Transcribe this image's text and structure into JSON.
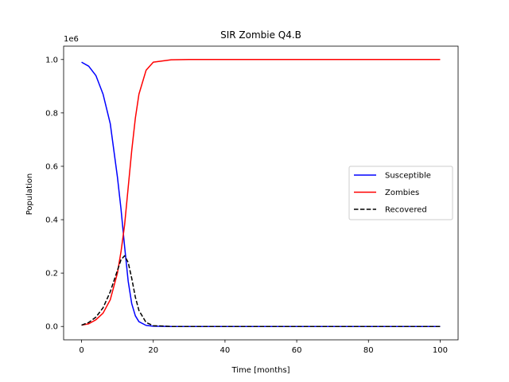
{
  "chart_data": {
    "type": "line",
    "title": "SIR Zombie Q4.B",
    "xlabel": "Time [months]",
    "ylabel": "Population",
    "y_offset_label": "1e6",
    "xlim": [
      -5,
      105
    ],
    "ylim": [
      -0.05,
      1.05
    ],
    "x_ticks": [
      0,
      20,
      40,
      60,
      80,
      100
    ],
    "x_tick_labels": [
      "0",
      "20",
      "40",
      "60",
      "80",
      "100"
    ],
    "y_ticks": [
      0.0,
      0.2,
      0.4,
      0.6,
      0.8,
      1.0
    ],
    "y_tick_labels": [
      "0.0",
      "0.2",
      "0.4",
      "0.6",
      "0.8",
      "1.0"
    ],
    "grid": false,
    "legend_placement": "center-right",
    "x": [
      0,
      2,
      4,
      6,
      8,
      10,
      11,
      12,
      13,
      14,
      15,
      16,
      18,
      20,
      25,
      30,
      40,
      50,
      60,
      70,
      80,
      90,
      100
    ],
    "series": [
      {
        "name": "Susceptible",
        "color": "#0000ff",
        "dash": "solid",
        "values": [
          0.99,
          0.975,
          0.94,
          0.87,
          0.76,
          0.56,
          0.44,
          0.3,
          0.17,
          0.085,
          0.04,
          0.018,
          0.004,
          0.001,
          0.0,
          0.0,
          0.0,
          0.0,
          0.0,
          0.0,
          0.0,
          0.0,
          0.0
        ]
      },
      {
        "name": "Zombies",
        "color": "#ff0000",
        "dash": "solid",
        "values": [
          0.005,
          0.01,
          0.025,
          0.05,
          0.1,
          0.2,
          0.28,
          0.38,
          0.52,
          0.66,
          0.78,
          0.87,
          0.96,
          0.99,
          0.999,
          1.0,
          1.0,
          1.0,
          1.0,
          1.0,
          1.0,
          1.0,
          1.0
        ]
      },
      {
        "name": "Recovered",
        "color": "#000000",
        "dash": "dashed",
        "values": [
          0.005,
          0.015,
          0.035,
          0.07,
          0.13,
          0.21,
          0.25,
          0.265,
          0.24,
          0.18,
          0.11,
          0.06,
          0.015,
          0.003,
          0.0,
          0.0,
          0.0,
          0.0,
          0.0,
          0.0,
          0.0,
          0.0,
          0.0
        ]
      }
    ]
  }
}
